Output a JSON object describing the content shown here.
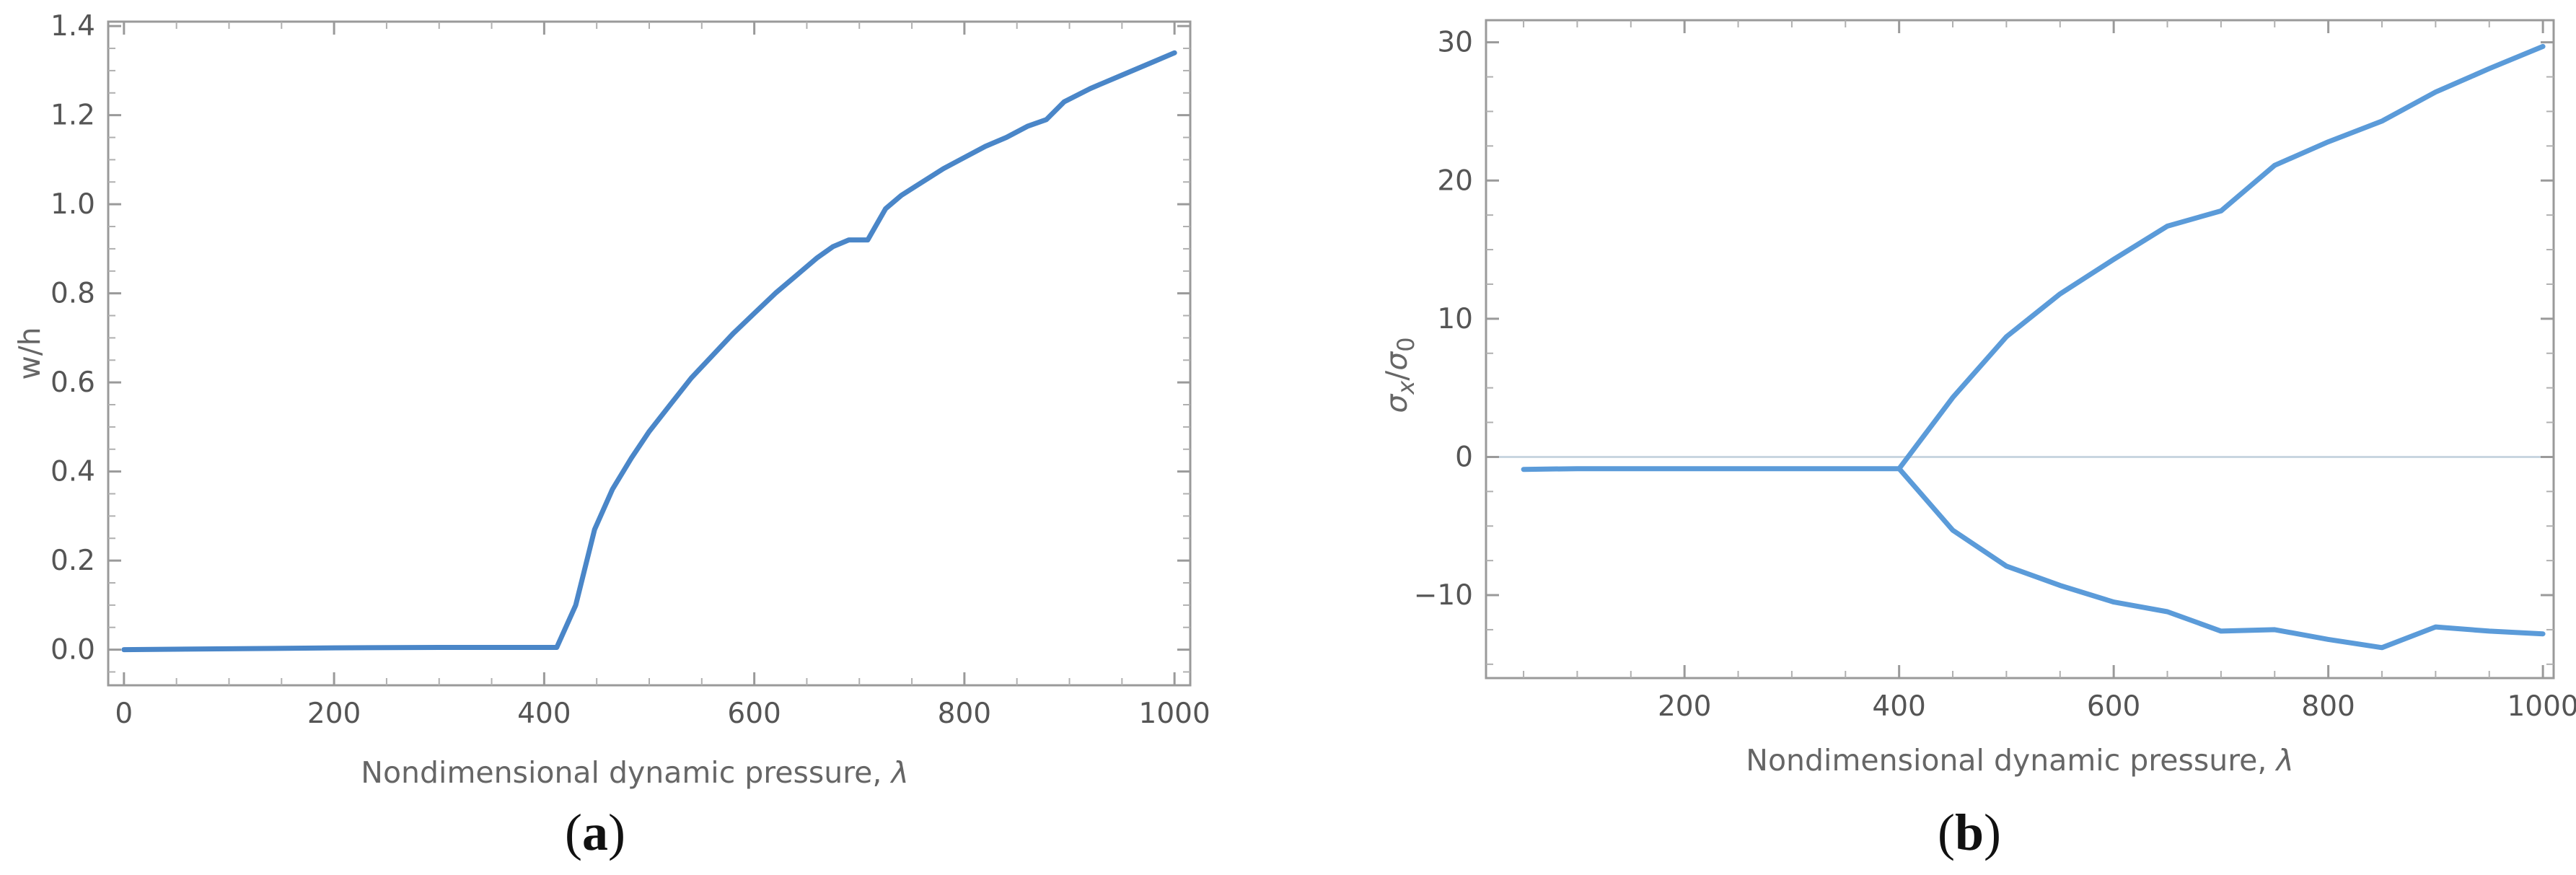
{
  "chart_data": [
    {
      "type": "line",
      "caption_letter": "a",
      "xlabel": "Nondimensional dynamic pressure, ",
      "xlabel_symbol": "λ",
      "ylabel": "w/h",
      "xlim": [
        -15,
        1015
      ],
      "ylim": [
        -0.08,
        1.41
      ],
      "xticks": [
        0,
        200,
        400,
        600,
        800,
        1000
      ],
      "xtick_labels": [
        "0",
        "200",
        "400",
        "600",
        "800",
        "1000"
      ],
      "yticks": [
        0.0,
        0.2,
        0.4,
        0.6,
        0.8,
        1.0,
        1.2,
        1.4
      ],
      "ytick_labels": [
        "0.0",
        "0.2",
        "0.4",
        "0.6",
        "0.8",
        "1.0",
        "1.2",
        "1.4"
      ],
      "series": [
        {
          "color": "#4a86c8",
          "x": [
            0,
            100,
            200,
            300,
            400,
            412,
            430,
            448,
            465,
            483,
            500,
            520,
            540,
            560,
            580,
            600,
            620,
            640,
            660,
            675,
            690,
            708,
            725,
            740,
            760,
            780,
            800,
            820,
            840,
            860,
            878,
            895,
            920,
            950,
            980,
            1000
          ],
          "y": [
            0.0,
            0.002,
            0.004,
            0.005,
            0.005,
            0.005,
            0.1,
            0.27,
            0.36,
            0.43,
            0.49,
            0.55,
            0.61,
            0.66,
            0.71,
            0.755,
            0.8,
            0.84,
            0.88,
            0.905,
            0.92,
            0.92,
            0.99,
            1.02,
            1.05,
            1.08,
            1.105,
            1.13,
            1.15,
            1.175,
            1.19,
            1.23,
            1.26,
            1.29,
            1.32,
            1.34
          ]
        }
      ]
    },
    {
      "type": "line",
      "caption_letter": "b",
      "xlabel": "Nondimensional dynamic pressure, ",
      "xlabel_symbol": "λ",
      "ylabel_num": "σ",
      "ylabel_num_sub": "x",
      "ylabel_sep": "/",
      "ylabel_den": "σ",
      "ylabel_den_sub": "0",
      "xlim": [
        15,
        1010
      ],
      "ylim": [
        -16,
        31.6
      ],
      "xticks": [
        200,
        400,
        600,
        800,
        1000
      ],
      "xtick_labels": [
        "200",
        "400",
        "600",
        "800",
        "1000"
      ],
      "yticks": [
        -10,
        0,
        10,
        20,
        30
      ],
      "ytick_labels": [
        "−10",
        "0",
        "10",
        "20",
        "30"
      ],
      "zero_line": true,
      "series": [
        {
          "color": "#5b9bd9",
          "x": [
            50,
            100,
            150,
            200,
            250,
            300,
            350,
            400,
            450,
            500,
            550,
            600,
            650,
            700,
            750,
            800,
            850,
            900,
            950,
            1000
          ],
          "y": [
            -0.9,
            -0.85,
            -0.85,
            -0.85,
            -0.85,
            -0.85,
            -0.85,
            -0.85,
            4.3,
            8.7,
            11.8,
            14.3,
            16.7,
            17.8,
            21.1,
            22.8,
            24.3,
            26.4,
            28.1,
            29.7
          ]
        },
        {
          "color": "#5b9bd9",
          "x": [
            400,
            450,
            500,
            550,
            600,
            650,
            700,
            750,
            800,
            850,
            900,
            950,
            1000
          ],
          "y": [
            -0.85,
            -5.3,
            -7.9,
            -9.3,
            -10.5,
            -11.2,
            -12.6,
            -12.5,
            -13.2,
            -13.8,
            -12.3,
            -12.6,
            -12.8
          ]
        }
      ]
    }
  ]
}
